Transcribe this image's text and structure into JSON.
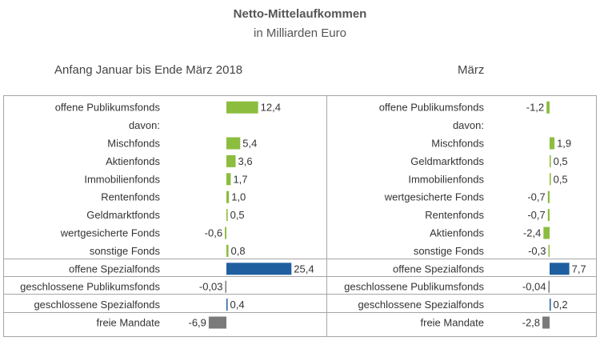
{
  "title": "Netto-Mittelaufkommen",
  "subtitle": "in Milliarden Euro",
  "colors": {
    "green": "#8cbd3f",
    "blue": "#1f5fa0",
    "gray": "#7a7a7a",
    "border": "#a6a6a6",
    "text": "#333333"
  },
  "chart_data": [
    {
      "type": "bar",
      "orientation": "horizontal",
      "title": "Anfang Januar bis Ende März 2018",
      "categories": [
        "offene Publikumsfonds",
        "davon:",
        "Mischfonds",
        "Aktienfonds",
        "Immobilienfonds",
        "Rentenfonds",
        "Geldmarktfonds",
        "wertgesicherte Fonds",
        "sonstige Fonds",
        "offene Spezialfonds",
        "geschlossene Publikumsfonds",
        "geschlossene Spezialfonds",
        "freie Mandate"
      ],
      "values": [
        12.4,
        null,
        5.4,
        3.6,
        1.7,
        1.0,
        0.5,
        -0.6,
        0.8,
        25.4,
        -0.03,
        0.4,
        -6.9
      ],
      "labels": [
        "12,4",
        "",
        "5,4",
        "3,6",
        "1,7",
        "1,0",
        "0,5",
        "-0,6",
        "0,8",
        "25,4",
        "-0,03",
        "0,4",
        "-6,9"
      ],
      "colors": [
        "green",
        null,
        "green",
        "green",
        "green",
        "green",
        "green",
        "green",
        "green",
        "blue",
        "gray",
        "blue",
        "gray"
      ]
    },
    {
      "type": "bar",
      "orientation": "horizontal",
      "title": "März",
      "categories": [
        "offene Publikumsfonds",
        "davon:",
        "Mischfonds",
        "Geldmarktfonds",
        "Immobilienfonds",
        "wertgesicherte Fonds",
        "Rentenfonds",
        "Aktienfonds",
        "sonstige Fonds",
        "offene Spezialfonds",
        "geschlossene Publikumsfonds",
        "geschlossene Spezialfonds",
        "freie Mandate"
      ],
      "values": [
        -1.2,
        null,
        1.9,
        0.5,
        0.5,
        -0.7,
        -0.7,
        -2.4,
        -0.3,
        7.7,
        -0.04,
        0.2,
        -2.8
      ],
      "labels": [
        "-1,2",
        "",
        "1,9",
        "0,5",
        "0,5",
        "-0,7",
        "-0,7",
        "-2,4",
        "-0,3",
        "7,7",
        "-0,04",
        "0,2",
        "-2,8"
      ],
      "colors": [
        "green",
        null,
        "green",
        "green",
        "green",
        "green",
        "green",
        "green",
        "green",
        "blue",
        "gray",
        "blue",
        "gray"
      ]
    }
  ]
}
